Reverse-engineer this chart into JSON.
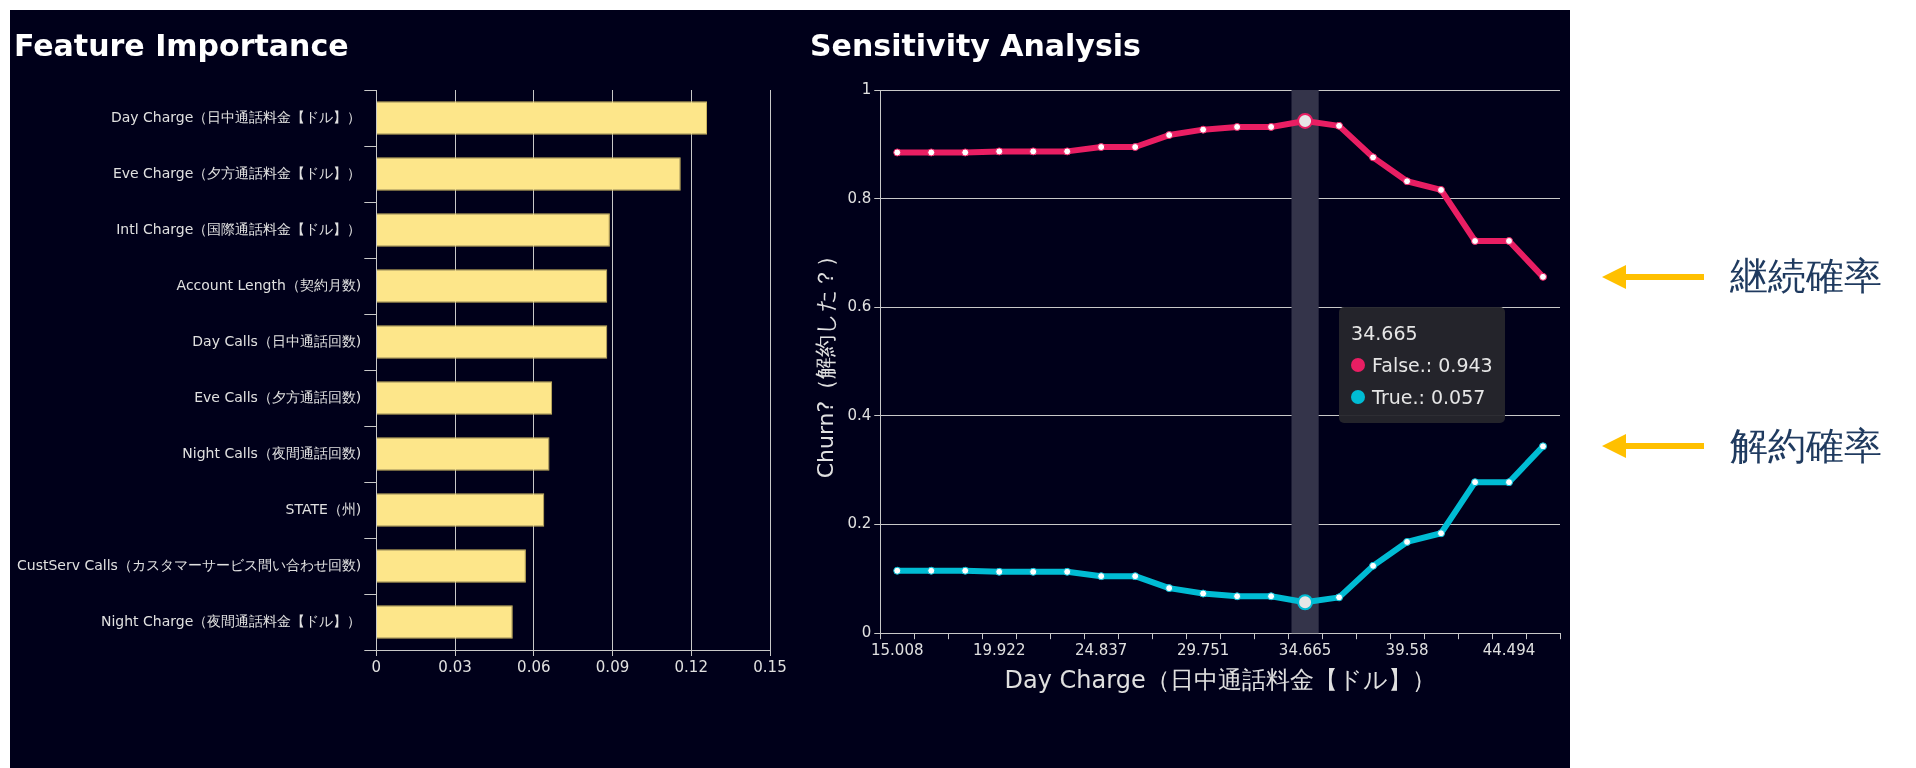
{
  "chart_data": [
    {
      "type": "bar",
      "title": "Feature Importance",
      "orientation": "horizontal",
      "categories": [
        "Day Charge（日中通話料金【ドル】）",
        "Eve Charge（夕方通話料金【ドル】）",
        "Intl Charge（国際通話料金【ドル】）",
        "Account Length（契約月数)",
        "Day Calls（日中通話回数)",
        "Eve Calls（夕方通話回数)",
        "Night Calls（夜間通話回数)",
        "STATE（州)",
        "CustServ Calls（カスタマーサービス問い合わせ回数)",
        "Night Charge（夜間通話料金【ドル】）"
      ],
      "values": [
        0.126,
        0.116,
        0.089,
        0.088,
        0.088,
        0.067,
        0.066,
        0.064,
        0.057,
        0.052
      ],
      "color": "#fde68a",
      "xlim": [
        0,
        0.15
      ],
      "xticks": [
        0,
        0.03,
        0.06,
        0.09,
        0.12,
        0.15
      ],
      "grid": "x"
    },
    {
      "type": "line",
      "title": "Sensitivity Analysis",
      "xlabel": "Day Charge（日中通話料金【ドル】）",
      "ylabel": "Churn?（解約した？）",
      "categories": [
        "15.008",
        null,
        null,
        "19.922",
        null,
        null,
        "24.837",
        null,
        null,
        "29.751",
        null,
        null,
        "34.665",
        null,
        null,
        "39.58",
        null,
        null,
        "44.494",
        null
      ],
      "series": [
        {
          "color": "#e91e63",
          "values": [
            0.885,
            0.885,
            0.885,
            0.887,
            0.887,
            0.887,
            0.895,
            0.895,
            0.917,
            0.927,
            0.932,
            0.932,
            0.943,
            0.934,
            0.876,
            0.832,
            0.816,
            0.722,
            0.722,
            0.656
          ]
        },
        {
          "color": "#00bcd4",
          "values": [
            0.115,
            0.115,
            0.115,
            0.113,
            0.113,
            0.113,
            0.105,
            0.105,
            0.083,
            0.073,
            0.068,
            0.068,
            0.057,
            0.066,
            0.124,
            0.168,
            0.184,
            0.278,
            0.278,
            0.344
          ]
        }
      ],
      "ylim": [
        0,
        1
      ],
      "yticks": [
        0,
        0.2,
        0.4,
        0.6,
        0.8,
        1
      ],
      "grid": "y",
      "marker": "circle",
      "bands": [
        {
          "axis": "x",
          "from": "34.665",
          "to": "34.665",
          "color": "#34344a"
        }
      ],
      "annotations": [
        "False.: 0.943",
        "True.: 0.057",
        "継続確率",
        "解約確率"
      ]
    }
  ]
}
